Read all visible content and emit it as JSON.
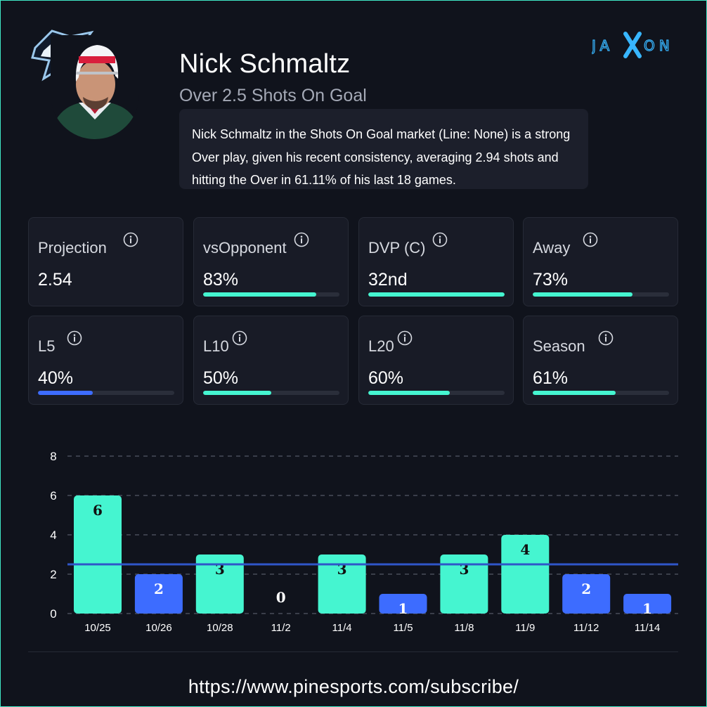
{
  "brand": {
    "name": "JAXON",
    "color": "#38b6ff"
  },
  "player": {
    "name": "Nick Schmaltz",
    "market": "Over 2.5 Shots On Goal",
    "summary": "Nick Schmaltz in the Shots On Goal market (Line: None) is a strong Over play, given his recent consistency, averaging 2.94 shots and hitting the Over in 61.11% of his last 18 games."
  },
  "stats": [
    {
      "label": "Projection",
      "value": "2.54",
      "progress": null,
      "color": null
    },
    {
      "label": "vsOpponent",
      "value": "83%",
      "progress": 0.83,
      "color": "#45f5d0"
    },
    {
      "label": "DVP (C)",
      "value": "32nd",
      "progress": 1.0,
      "color": "#45f5d0"
    },
    {
      "label": "Away",
      "value": "73%",
      "progress": 0.73,
      "color": "#45f5d0"
    },
    {
      "label": "L5",
      "value": "40%",
      "progress": 0.4,
      "color": "#3d6cff"
    },
    {
      "label": "L10",
      "value": "50%",
      "progress": 0.5,
      "color": "#45f5d0"
    },
    {
      "label": "L20",
      "value": "60%",
      "progress": 0.6,
      "color": "#45f5d0"
    },
    {
      "label": "Season",
      "value": "61%",
      "progress": 0.61,
      "color": "#45f5d0"
    }
  ],
  "colors": {
    "over": "#45f5d0",
    "under": "#3d6cff",
    "line": "#2f56c8",
    "background": "#10131c"
  },
  "chart_data": {
    "type": "bar",
    "categories": [
      "10/25",
      "10/26",
      "10/28",
      "11/2",
      "11/4",
      "11/5",
      "11/8",
      "11/9",
      "11/12",
      "11/14"
    ],
    "values": [
      6,
      2,
      3,
      0,
      3,
      1,
      3,
      4,
      2,
      1
    ],
    "line": 2.5,
    "ylim": [
      0,
      8
    ],
    "yticks": [
      0,
      2,
      4,
      6,
      8
    ],
    "grid": true,
    "title": "",
    "xlabel": "",
    "ylabel": ""
  },
  "footer": {
    "url": "https://www.pinesports.com/subscribe/"
  }
}
